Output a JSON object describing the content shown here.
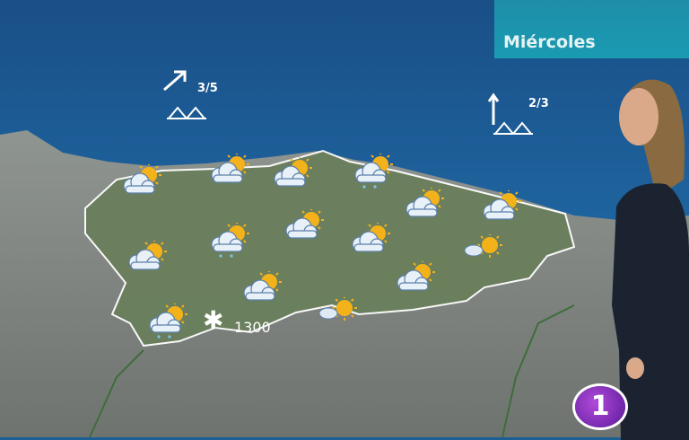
{
  "day_label": "Miércoles",
  "wind": [
    {
      "direction": "north-east-arrow-icon",
      "value": "3/5",
      "sea_state": "waves-icon"
    },
    {
      "direction": "north-arrow-icon",
      "value": "2/3",
      "sea_state": "waves-icon"
    }
  ],
  "snow": {
    "icon": "snowflake-icon",
    "level": "1300"
  },
  "forecast_icons": [
    "partly-cloudy",
    "partly-cloudy",
    "partly-cloudy",
    "partly-cloudy-showers",
    "partly-cloudy",
    "partly-cloudy",
    "partly-cloudy",
    "partly-cloudy-showers",
    "partly-cloudy",
    "partly-cloudy",
    "sun-with-cloud",
    "partly-cloudy",
    "partly-cloudy",
    "partly-cloudy-showers",
    "sun-with-cloud"
  ],
  "channel_logo": "1",
  "colors": {
    "sea": "#1f68a3",
    "day_banner": "#1a9bb2",
    "logo": "#8a2fc0"
  }
}
